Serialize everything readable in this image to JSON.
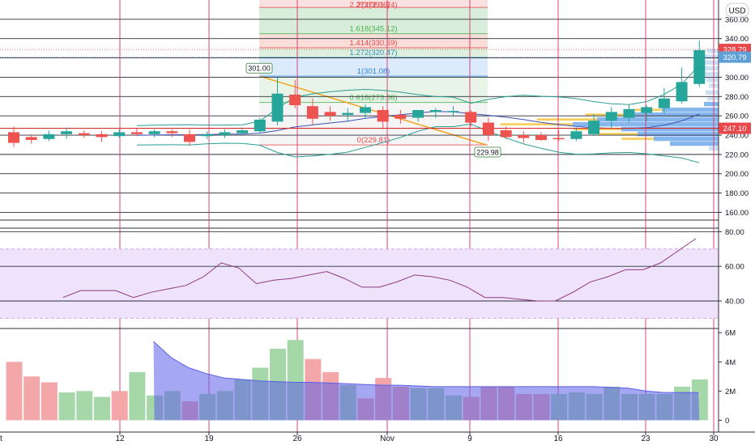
{
  "header": {
    "currency": "USD"
  },
  "chart_data": [
    {
      "type": "candlestick",
      "x_labels": [
        "12",
        "19",
        "26",
        "Nov",
        "9",
        "16",
        "23",
        "30"
      ],
      "price_axis": {
        "ticks": [
          160,
          180,
          200,
          220,
          240,
          260,
          280,
          300,
          320,
          340,
          360
        ],
        "tick_labels": [
          "160.00",
          "180.00",
          "200.00",
          "220.00",
          "240.00",
          "260.00",
          "280.00",
          "300.00",
          "320.00",
          "340.00",
          "360.00"
        ],
        "range": [
          152,
          380
        ]
      },
      "candles": [
        {
          "o": 243,
          "h": 249,
          "l": 228,
          "c": 232
        },
        {
          "o": 238,
          "h": 241,
          "l": 231,
          "c": 235
        },
        {
          "o": 236,
          "h": 245,
          "l": 234,
          "c": 241
        },
        {
          "o": 241,
          "h": 248,
          "l": 236,
          "c": 244
        },
        {
          "o": 242,
          "h": 245,
          "l": 237,
          "c": 240
        },
        {
          "o": 241,
          "h": 244,
          "l": 233,
          "c": 238
        },
        {
          "o": 239,
          "h": 246,
          "l": 237,
          "c": 243
        },
        {
          "o": 243,
          "h": 247,
          "l": 239,
          "c": 241
        },
        {
          "o": 241,
          "h": 246,
          "l": 238,
          "c": 244
        },
        {
          "o": 244,
          "h": 246,
          "l": 238,
          "c": 242
        },
        {
          "o": 241,
          "h": 246,
          "l": 229,
          "c": 233
        },
        {
          "o": 239,
          "h": 244,
          "l": 236,
          "c": 241
        },
        {
          "o": 240,
          "h": 246,
          "l": 237,
          "c": 243
        },
        {
          "o": 242,
          "h": 247,
          "l": 240,
          "c": 245
        },
        {
          "o": 244,
          "h": 258,
          "l": 242,
          "c": 256
        },
        {
          "o": 254,
          "h": 300,
          "l": 250,
          "c": 283
        },
        {
          "o": 282,
          "h": 297,
          "l": 268,
          "c": 271
        },
        {
          "o": 270,
          "h": 278,
          "l": 251,
          "c": 257
        },
        {
          "o": 264,
          "h": 270,
          "l": 255,
          "c": 260
        },
        {
          "o": 261,
          "h": 268,
          "l": 254,
          "c": 263
        },
        {
          "o": 263,
          "h": 272,
          "l": 258,
          "c": 269
        },
        {
          "o": 266,
          "h": 270,
          "l": 246,
          "c": 254
        },
        {
          "o": 261,
          "h": 266,
          "l": 252,
          "c": 257
        },
        {
          "o": 258,
          "h": 266,
          "l": 254,
          "c": 266
        },
        {
          "o": 264,
          "h": 268,
          "l": 258,
          "c": 266
        },
        {
          "o": 264,
          "h": 270,
          "l": 259,
          "c": 265
        },
        {
          "o": 264,
          "h": 266,
          "l": 249,
          "c": 253
        },
        {
          "o": 253,
          "h": 258,
          "l": 234,
          "c": 240
        },
        {
          "o": 245,
          "h": 249,
          "l": 236,
          "c": 238
        },
        {
          "o": 240,
          "h": 244,
          "l": 232,
          "c": 237
        },
        {
          "o": 240,
          "h": 243,
          "l": 234,
          "c": 235
        },
        {
          "o": 237,
          "h": 245,
          "l": 234,
          "c": 236
        },
        {
          "o": 236,
          "h": 248,
          "l": 234,
          "c": 244
        },
        {
          "o": 241,
          "h": 262,
          "l": 239,
          "c": 255
        },
        {
          "o": 255,
          "h": 269,
          "l": 247,
          "c": 264
        },
        {
          "o": 258,
          "h": 272,
          "l": 253,
          "c": 267
        },
        {
          "o": 263,
          "h": 271,
          "l": 254,
          "c": 269
        },
        {
          "o": 268,
          "h": 289,
          "l": 262,
          "c": 278
        },
        {
          "o": 275,
          "h": 310,
          "l": 273,
          "c": 295
        },
        {
          "o": 293,
          "h": 338,
          "l": 290,
          "c": 328
        }
      ],
      "fibonacci": [
        {
          "label": "2.272(391.74)",
          "value": 391.74,
          "color": "#e8474b",
          "fill": "#f7c8c8"
        },
        {
          "label": "2(372.36)",
          "value": 372.36,
          "color": "#e8474b",
          "fill": "#f9dcdc"
        },
        {
          "label": "1.618(345.12)",
          "value": 345.12,
          "color": "#4caf50",
          "fill": "#d2ebd3"
        },
        {
          "label": "1.414(330.59)",
          "value": 330.59,
          "color": "#e8474b",
          "fill": "#f7d7d2"
        },
        {
          "label": "1.272(320.47)",
          "value": 320.47,
          "color": "#2a96c0",
          "fill": "#d9ecd7"
        },
        {
          "label": "1(301.08)",
          "value": 301.08,
          "color": "#2a7fe3",
          "fill": "#d6e8fb"
        },
        {
          "label": "0.618(273.86)",
          "value": 273.86,
          "color": "#4caf50",
          "fill": "#e4f2e4"
        },
        {
          "label": "0(229.81)",
          "value": 229.81,
          "color": "#e8474b",
          "fill": "#f3f3f3"
        }
      ],
      "swing_labels": [
        {
          "label": "301.00",
          "value": 301.0
        },
        {
          "label": "229.98",
          "value": 229.98
        }
      ],
      "price_badges": [
        {
          "label": "328.79",
          "value": 328.79,
          "color": "#e8474b"
        },
        {
          "label": "320.79",
          "value": 320.79,
          "color": "#5f9fd8"
        },
        {
          "label": "247.10",
          "value": 247.1,
          "color": "#e8474b"
        }
      ],
      "rsi": {
        "ticks": [
          40,
          60,
          80
        ],
        "tick_labels": [
          "40.00",
          "60.00",
          "80.00"
        ],
        "band": [
          30,
          70
        ],
        "range": [
          26,
          82
        ],
        "values": [
          43,
          45,
          44,
          42,
          46,
          46,
          46,
          42,
          45,
          47,
          49,
          54,
          62,
          59,
          50,
          52,
          53,
          55,
          57,
          53,
          48,
          48,
          51,
          55,
          54,
          52,
          48,
          42,
          42,
          41,
          40,
          40,
          45,
          51,
          54,
          58,
          58,
          62,
          69,
          76
        ]
      },
      "volume": {
        "ticks": [
          0,
          2,
          4,
          6
        ],
        "tick_labels": [
          "0",
          "2M",
          "4M",
          "6M"
        ],
        "range": [
          -0.7,
          6.4
        ],
        "values": [
          4.0,
          3.0,
          2.6,
          1.9,
          2.0,
          1.6,
          2.0,
          3.3,
          1.7,
          2.0,
          1.3,
          1.8,
          2.0,
          2.8,
          3.6,
          4.9,
          5.5,
          4.2,
          3.3,
          2.4,
          1.5,
          2.9,
          2.3,
          2.2,
          2.2,
          1.7,
          1.6,
          2.3,
          2.3,
          1.8,
          1.8,
          1.8,
          1.9,
          1.8,
          2.3,
          1.8,
          1.8,
          1.8,
          2.3,
          2.8
        ],
        "colors": [
          "#f4a7a9",
          "#f4a7a9",
          "#f4a7a9",
          "#a6d7a8",
          "#a6d7a8",
          "#a6d7a8",
          "#f4a7a9",
          "#a6d7a8",
          "#a6d7a8",
          "#a6d7a8",
          "#f4a7a9",
          "#a6d7a8",
          "#a6d7a8",
          "#a6d7a8",
          "#a6d7a8",
          "#a6d7a8",
          "#a6d7a8",
          "#f4a7a9",
          "#f4a7a9",
          "#a6d7a8",
          "#f4a7a9",
          "#f4a7a9",
          "#f4a7a9",
          "#a6d7a8",
          "#a6d7a8",
          "#a6d7a8",
          "#f4a7a9",
          "#f4a7a9",
          "#f4a7a9",
          "#f4a7a9",
          "#f4a7a9",
          "#a6d7a8",
          "#a6d7a8",
          "#a6d7a8",
          "#a6d7a8",
          "#a6d7a8",
          "#a6d7a8",
          "#a6d7a8",
          "#a6d7a8",
          "#a6d7a8"
        ],
        "average": [
          null,
          null,
          null,
          null,
          null,
          null,
          null,
          null,
          5.4,
          4.3,
          3.6,
          3.2,
          2.9,
          2.8,
          2.7,
          2.65,
          2.6,
          2.6,
          2.55,
          2.5,
          2.45,
          2.4,
          2.4,
          2.35,
          2.3,
          2.3,
          2.3,
          2.3,
          2.3,
          2.3,
          2.3,
          2.3,
          2.3,
          2.3,
          2.25,
          2.2,
          2.0,
          1.9,
          1.9,
          1.9
        ]
      },
      "colors": {
        "up": "#26a69a",
        "down": "#ef5350",
        "vline": "#d6336c",
        "rsi_line": "#8e3a80",
        "volume_avg": "#5b5ee8"
      }
    }
  ]
}
